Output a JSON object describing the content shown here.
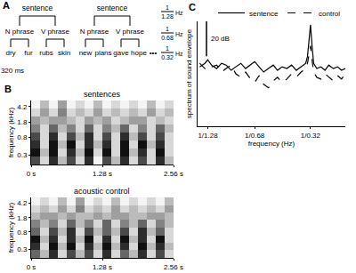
{
  "panel_labels": [
    "A",
    "B",
    "C"
  ],
  "diagram": {
    "sentences": [
      {
        "label": "sentence",
        "phrases": [
          {
            "label": "N phrase",
            "words": [
              "dry",
              "fur"
            ]
          },
          {
            "label": "V phrase",
            "words": [
              "rubs",
              "skin"
            ]
          }
        ]
      },
      {
        "label": "sentence",
        "phrases": [
          {
            "label": "N phrase",
            "words": [
              "new",
              "plans"
            ]
          },
          {
            "label": "V phrase",
            "words": [
              "gave",
              "hope"
            ]
          }
        ]
      }
    ],
    "continuation": "•••",
    "rates": [
      {
        "numerator": "1",
        "denominator": "1.28",
        "unit": "Hz"
      },
      {
        "numerator": "1",
        "denominator": "0.68",
        "unit": "Hz"
      },
      {
        "numerator": "1",
        "denominator": "0.32",
        "unit": "Hz"
      }
    ],
    "syllable_duration": "320 ms"
  },
  "chart_data": [
    {
      "type": "heatmap",
      "title": "sentences",
      "x": [
        0.08,
        0.24,
        0.4,
        0.56,
        0.72,
        0.88,
        1.04,
        1.2,
        1.36,
        1.52,
        1.68,
        1.84,
        2.0,
        2.16,
        2.32,
        2.48
      ],
      "y_bins": [
        0.18,
        0.28,
        0.43,
        0.66,
        1.02,
        1.58,
        2.43,
        3.75,
        5.8
      ],
      "cells": [
        [
          7,
          2,
          8,
          3,
          7,
          2,
          8,
          1,
          7,
          3,
          8,
          2,
          7,
          2,
          8,
          3
        ],
        [
          9,
          3,
          9,
          2,
          8,
          3,
          9,
          2,
          9,
          2,
          9,
          3,
          8,
          2,
          9,
          2
        ],
        [
          8,
          2,
          9,
          3,
          9,
          2,
          8,
          3,
          8,
          2,
          9,
          2,
          9,
          3,
          8,
          2
        ],
        [
          7,
          2,
          8,
          2,
          7,
          3,
          8,
          2,
          7,
          2,
          8,
          3,
          7,
          2,
          7,
          2
        ],
        [
          5,
          2,
          6,
          3,
          5,
          2,
          6,
          2,
          5,
          3,
          6,
          2,
          5,
          2,
          6,
          3
        ],
        [
          4,
          3,
          4,
          4,
          3,
          2,
          4,
          3,
          4,
          2,
          3,
          4,
          4,
          2,
          3,
          2
        ],
        [
          2,
          4,
          2,
          5,
          2,
          3,
          2,
          4,
          2,
          3,
          2,
          3,
          2,
          4,
          2,
          3
        ],
        [
          1,
          3,
          1,
          4,
          1,
          2,
          1,
          3,
          1,
          2,
          1,
          2,
          1,
          3,
          1,
          2
        ]
      ],
      "xlim": [
        0,
        2.56
      ],
      "ylim": [
        0.18,
        5.8
      ],
      "xticks": [
        {
          "value": 0,
          "label": "0 s"
        },
        {
          "value": 1.28,
          "label": "1.28 s"
        },
        {
          "value": 2.56,
          "label": "2.56 s"
        }
      ],
      "yticks": [
        0.3,
        0.8,
        1.8,
        4.2
      ],
      "y_label": "frequency (kHz)",
      "log": "y"
    },
    {
      "type": "heatmap",
      "title": "acoustic control",
      "x": [
        0.08,
        0.24,
        0.4,
        0.56,
        0.72,
        0.88,
        1.04,
        1.2,
        1.36,
        1.52,
        1.68,
        1.84,
        2.0,
        2.16,
        2.32,
        2.48
      ],
      "y_bins": [
        0.18,
        0.28,
        0.43,
        0.66,
        1.02,
        1.58,
        2.43,
        3.75,
        5.8
      ],
      "cells": [
        [
          6,
          3,
          8,
          2,
          7,
          3,
          7,
          2,
          8,
          2,
          6,
          3,
          8,
          2,
          7,
          2
        ],
        [
          8,
          2,
          9,
          3,
          9,
          2,
          8,
          3,
          9,
          3,
          8,
          2,
          9,
          3,
          8,
          3
        ],
        [
          9,
          3,
          8,
          2,
          8,
          3,
          9,
          2,
          8,
          2,
          9,
          3,
          8,
          2,
          9,
          2
        ],
        [
          6,
          2,
          7,
          3,
          8,
          2,
          7,
          3,
          6,
          3,
          7,
          2,
          8,
          3,
          6,
          2
        ],
        [
          5,
          3,
          5,
          2,
          6,
          3,
          5,
          2,
          6,
          2,
          5,
          3,
          6,
          2,
          5,
          3
        ],
        [
          3,
          4,
          4,
          3,
          4,
          3,
          3,
          4,
          3,
          4,
          4,
          3,
          3,
          4,
          4,
          3
        ],
        [
          2,
          3,
          2,
          4,
          2,
          5,
          2,
          3,
          2,
          4,
          2,
          3,
          2,
          3,
          2,
          4
        ],
        [
          1,
          2,
          1,
          3,
          1,
          4,
          1,
          2,
          1,
          3,
          1,
          2,
          1,
          2,
          1,
          3
        ]
      ],
      "xlim": [
        0,
        2.56
      ],
      "ylim": [
        0.18,
        5.8
      ],
      "xticks": [
        {
          "value": 0,
          "label": "0 s"
        },
        {
          "value": 1.28,
          "label": "1.28 s"
        },
        {
          "value": 2.56,
          "label": "2.56 s"
        }
      ],
      "yticks": [
        0.3,
        0.8,
        1.8,
        4.2
      ],
      "y_label": "frequency (kHz)",
      "log": "y"
    },
    {
      "type": "line",
      "x": [
        0.7,
        0.75,
        0.78,
        0.82,
        0.88,
        0.94,
        1.0,
        1.07,
        1.14,
        1.22,
        1.3,
        1.39,
        1.47,
        1.56,
        1.66,
        1.77,
        1.89,
        2.0,
        2.13,
        2.27,
        2.42,
        2.58,
        2.75,
        2.93,
        3.0,
        3.06,
        3.125,
        3.19,
        3.26,
        3.4,
        3.6,
        3.8,
        4.0,
        4.25,
        4.5,
        4.75,
        5.0
      ],
      "series": [
        {
          "name": "sentence",
          "color": "#000000",
          "line_style": "solid",
          "values": [
            34,
            36,
            38,
            35,
            33,
            36,
            35,
            32,
            34,
            36,
            33,
            35,
            37,
            34,
            31,
            33,
            35,
            32,
            34,
            33,
            35,
            32,
            34,
            36,
            40,
            48,
            58,
            46,
            36,
            33,
            34,
            32,
            35,
            33,
            34,
            32,
            33
          ]
        },
        {
          "name": "control",
          "color": "#000000",
          "line_style": "dashed",
          "values": [
            36,
            33,
            32,
            34,
            35,
            31,
            33,
            35,
            30,
            28,
            31,
            27,
            25,
            29,
            24,
            22,
            26,
            28,
            25,
            27,
            30,
            28,
            31,
            33,
            36,
            40,
            46,
            38,
            31,
            28,
            27,
            30,
            28,
            26,
            29,
            27,
            30
          ]
        }
      ],
      "xlim": [
        0.68,
        5
      ],
      "ylim": [
        0,
        60
      ],
      "xticks": [
        {
          "value": 0.78125,
          "label": "1/1.28"
        },
        {
          "value": 1.4706,
          "label": "1/0.68"
        },
        {
          "value": 3.125,
          "label": "1/0.32"
        }
      ],
      "x_label": "frequency (Hz)",
      "y_label": "spectrum of sound envelope",
      "log": "x",
      "tick_labels": "x",
      "legend": "top",
      "scale_bar": {
        "value": 20,
        "label": "20 dB"
      }
    }
  ]
}
